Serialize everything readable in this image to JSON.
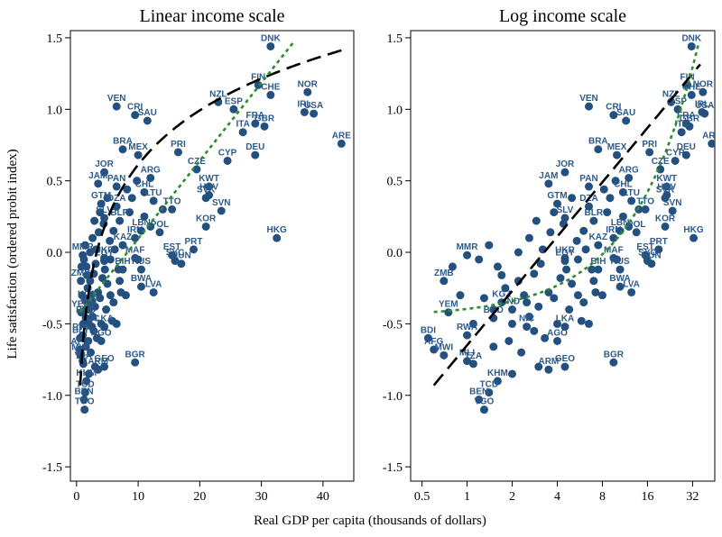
{
  "chart_data": [
    {
      "type": "scatter",
      "title": "Linear income scale",
      "xlabel": "Real GDP per capita (thousands of dollars)",
      "ylabel": "Life satisfaction (ordered probit index)",
      "xscale": "linear",
      "xlim": [
        -1,
        45
      ],
      "ylim": [
        -1.6,
        1.55
      ],
      "xticks": [
        0,
        10,
        20,
        30,
        40
      ],
      "xticklabels": [
        "0",
        "10",
        "20",
        "30",
        "40"
      ],
      "yticks": [
        -1.5,
        -1.0,
        -0.5,
        0.0,
        0.5,
        1.0,
        1.5
      ],
      "yticklabels": [
        "-1.5",
        "-1.0",
        "-0.5",
        "0.0",
        "0.5",
        "1.0",
        "1.5"
      ],
      "grid": false,
      "fit_lines": [
        {
          "style": "long-dashed",
          "color": "#000000",
          "form": "log"
        },
        {
          "style": "dotted",
          "color": "#2e8b2e",
          "form": "linear"
        }
      ]
    },
    {
      "type": "scatter",
      "title": "Log income scale",
      "xlabel": "Real GDP per capita (thousands of dollars)",
      "ylabel": "Life satisfaction (ordered probit index)",
      "xscale": "log2",
      "xlim": [
        0.42,
        45
      ],
      "ylim": [
        -1.6,
        1.55
      ],
      "xticks": [
        0.5,
        1,
        2,
        4,
        8,
        16,
        32
      ],
      "xticklabels": [
        "0.5",
        "1",
        "2",
        "4",
        "8",
        "16",
        "32"
      ],
      "yticks": [
        -1.5,
        -1.0,
        -0.5,
        0.0,
        0.5,
        1.0,
        1.5
      ],
      "yticklabels": [
        "-1.5",
        "-1.0",
        "-0.5",
        "0.0",
        "0.5",
        "1.0",
        "1.5"
      ],
      "grid": false,
      "fit_lines": [
        {
          "style": "long-dashed",
          "color": "#000000",
          "form": "linear-in-log"
        },
        {
          "style": "dotted",
          "color": "#2e8b2e",
          "form": "linear-in-level"
        }
      ]
    }
  ],
  "countries": [
    {
      "label": "DNK",
      "x": 31.5,
      "y": 1.44
    },
    {
      "label": "FIN",
      "x": 29.5,
      "y": 1.17
    },
    {
      "label": "CHE",
      "x": 31.5,
      "y": 1.1
    },
    {
      "label": "NOR",
      "x": 37.5,
      "y": 1.12
    },
    {
      "label": "NZL",
      "x": 23.0,
      "y": 1.05
    },
    {
      "label": "ESP",
      "x": 25.5,
      "y": 1.0
    },
    {
      "label": "IRL",
      "x": 37.0,
      "y": 0.98
    },
    {
      "label": "USA",
      "x": 38.5,
      "y": 0.97
    },
    {
      "label": "FRA",
      "x": 29.0,
      "y": 0.9
    },
    {
      "label": "GBR",
      "x": 30.5,
      "y": 0.88
    },
    {
      "label": "ITA",
      "x": 27.0,
      "y": 0.84
    },
    {
      "label": "ARE",
      "x": 43.0,
      "y": 0.76
    },
    {
      "label": "DEU",
      "x": 29.0,
      "y": 0.68
    },
    {
      "label": "CYP",
      "x": 24.5,
      "y": 0.64
    },
    {
      "label": "VEN",
      "x": 6.5,
      "y": 1.02
    },
    {
      "label": "CRI",
      "x": 9.5,
      "y": 0.96
    },
    {
      "label": "SAU",
      "x": 11.5,
      "y": 0.92
    },
    {
      "label": "BRA",
      "x": 7.5,
      "y": 0.72
    },
    {
      "label": "MEX",
      "x": 10.0,
      "y": 0.68
    },
    {
      "label": "PRI",
      "x": 16.5,
      "y": 0.7
    },
    {
      "label": "CZE",
      "x": 19.5,
      "y": 0.58
    },
    {
      "label": "ARG",
      "x": 12.0,
      "y": 0.52
    },
    {
      "label": "JOR",
      "x": 4.5,
      "y": 0.56
    },
    {
      "label": "JAM",
      "x": 3.5,
      "y": 0.48
    },
    {
      "label": "PAN",
      "x": 6.5,
      "y": 0.46
    },
    {
      "label": "CHL",
      "x": 11.0,
      "y": 0.42
    },
    {
      "label": "LTU",
      "x": 12.5,
      "y": 0.36
    },
    {
      "label": "GTM",
      "x": 4.0,
      "y": 0.34
    },
    {
      "label": "DZA",
      "x": 6.5,
      "y": 0.32
    },
    {
      "label": "SLV",
      "x": 4.5,
      "y": 0.24
    },
    {
      "label": "BLR",
      "x": 7.0,
      "y": 0.22
    },
    {
      "label": "TTO",
      "x": 15.5,
      "y": 0.3
    },
    {
      "label": "KWT",
      "x": 21.5,
      "y": 0.46
    },
    {
      "label": "SVK",
      "x": 21.0,
      "y": 0.38
    },
    {
      "label": "HRV",
      "x": 21.5,
      "y": 0.4
    },
    {
      "label": "POL",
      "x": 13.5,
      "y": 0.14
    },
    {
      "label": "SVN",
      "x": 23.5,
      "y": 0.29
    },
    {
      "label": "KOR",
      "x": 21.0,
      "y": 0.18
    },
    {
      "label": "HKG",
      "x": 32.5,
      "y": 0.1
    },
    {
      "label": "EST",
      "x": 15.5,
      "y": -0.02
    },
    {
      "label": "PRT",
      "x": 19.0,
      "y": 0.02
    },
    {
      "label": "SYC",
      "x": 16.0,
      "y": -0.06
    },
    {
      "label": "HUN",
      "x": 17.0,
      "y": -0.08
    },
    {
      "label": "MAF",
      "x": 9.5,
      "y": -0.04
    },
    {
      "label": "RUS",
      "x": 10.5,
      "y": -0.12
    },
    {
      "label": "BWA",
      "x": 10.5,
      "y": -0.24
    },
    {
      "label": "LVA",
      "x": 12.5,
      "y": -0.28
    },
    {
      "label": "KAZ",
      "x": 7.5,
      "y": 0.05
    },
    {
      "label": "MMR",
      "x": 1.0,
      "y": -0.02
    },
    {
      "label": "UKR",
      "x": 4.5,
      "y": -0.04
    },
    {
      "label": "ZMB",
      "x": 0.7,
      "y": -0.2
    },
    {
      "label": "YEM",
      "x": 0.75,
      "y": -0.42
    },
    {
      "label": "KGZ",
      "x": 1.7,
      "y": -0.35
    },
    {
      "label": "IND",
      "x": 2.0,
      "y": -0.4
    },
    {
      "label": "BGD",
      "x": 1.5,
      "y": -0.46
    },
    {
      "label": "RWA",
      "x": 1.0,
      "y": -0.58
    },
    {
      "label": "AGO",
      "x": 4.0,
      "y": -0.62
    },
    {
      "label": "BDI",
      "x": 0.55,
      "y": -0.6
    },
    {
      "label": "AFG",
      "x": 0.6,
      "y": -0.68
    },
    {
      "label": "MWI",
      "x": 0.7,
      "y": -0.72
    },
    {
      "label": "MLI",
      "x": 1.0,
      "y": -0.76
    },
    {
      "label": "TZA",
      "x": 1.1,
      "y": -0.78
    },
    {
      "label": "ARM",
      "x": 3.5,
      "y": -0.82
    },
    {
      "label": "GEO",
      "x": 4.5,
      "y": -0.8
    },
    {
      "label": "KHM",
      "x": 1.6,
      "y": -0.9
    },
    {
      "label": "TCD",
      "x": 1.4,
      "y": -0.98
    },
    {
      "label": "BEN",
      "x": 1.2,
      "y": -1.03
    },
    {
      "label": "TGO",
      "x": 1.3,
      "y": -1.1
    },
    {
      "label": "BGR",
      "x": 9.5,
      "y": -0.77
    },
    {
      "label": "NIC",
      "x": 2.5,
      "y": -0.52
    },
    {
      "label": "LKA",
      "x": 4.5,
      "y": -0.52
    },
    {
      "label": "BIH",
      "x": 7.5,
      "y": -0.12
    },
    {
      "label": "IRN",
      "x": 9.5,
      "y": 0.1
    },
    {
      "label": "LBN",
      "x": 10.5,
      "y": 0.15
    },
    {
      "label": "EGY",
      "x": 4.5,
      "y": -0.06
    }
  ],
  "extra_points": [
    [
      1.2,
      -0.05
    ],
    [
      1.6,
      -0.1
    ],
    [
      2.2,
      0.0
    ],
    [
      2.8,
      -0.15
    ],
    [
      3.2,
      0.02
    ],
    [
      1.8,
      -0.25
    ],
    [
      2.4,
      -0.3
    ],
    [
      3.5,
      -0.28
    ],
    [
      1.3,
      -0.32
    ],
    [
      2.0,
      -0.5
    ],
    [
      2.6,
      -0.45
    ],
    [
      3.0,
      -0.38
    ],
    [
      3.8,
      -0.32
    ],
    [
      4.2,
      -0.18
    ],
    [
      5.0,
      -0.22
    ],
    [
      5.5,
      -0.3
    ],
    [
      6.0,
      -0.35
    ],
    [
      6.8,
      -0.12
    ],
    [
      7.2,
      -0.28
    ],
    [
      8.0,
      -0.3
    ],
    [
      5.8,
      -0.48
    ],
    [
      4.8,
      -0.4
    ],
    [
      3.3,
      -0.6
    ],
    [
      2.3,
      -0.7
    ],
    [
      1.9,
      -0.62
    ],
    [
      1.1,
      -0.5
    ],
    [
      0.9,
      -0.3
    ],
    [
      0.8,
      -0.1
    ],
    [
      1.4,
      0.05
    ],
    [
      2.6,
      0.1
    ],
    [
      3.6,
      0.14
    ],
    [
      4.4,
      0.2
    ],
    [
      5.4,
      0.08
    ],
    [
      6.2,
      0.02
    ],
    [
      8.6,
      0.28
    ],
    [
      9.0,
      0.38
    ],
    [
      9.8,
      0.5
    ],
    [
      8.2,
      0.44
    ],
    [
      5.0,
      0.38
    ],
    [
      3.0,
      -0.8
    ],
    [
      2.0,
      -0.85
    ],
    [
      1.5,
      -0.66
    ],
    [
      2.8,
      -0.55
    ],
    [
      4.0,
      -0.5
    ],
    [
      6.5,
      -0.5
    ],
    [
      7.0,
      -0.2
    ],
    [
      12.0,
      0.18
    ],
    [
      14.0,
      0.3
    ],
    [
      10.0,
      -0.05
    ],
    [
      11.0,
      0.25
    ],
    [
      1.7,
      -0.16
    ],
    [
      2.2,
      -0.2
    ],
    [
      3.1,
      -0.08
    ],
    [
      4.6,
      -0.12
    ],
    [
      3.8,
      0.28
    ],
    [
      2.9,
      0.22
    ],
    [
      1.5,
      -0.4
    ],
    [
      2.5,
      -0.35
    ],
    [
      5.5,
      -0.05
    ],
    [
      6.0,
      0.15
    ]
  ]
}
